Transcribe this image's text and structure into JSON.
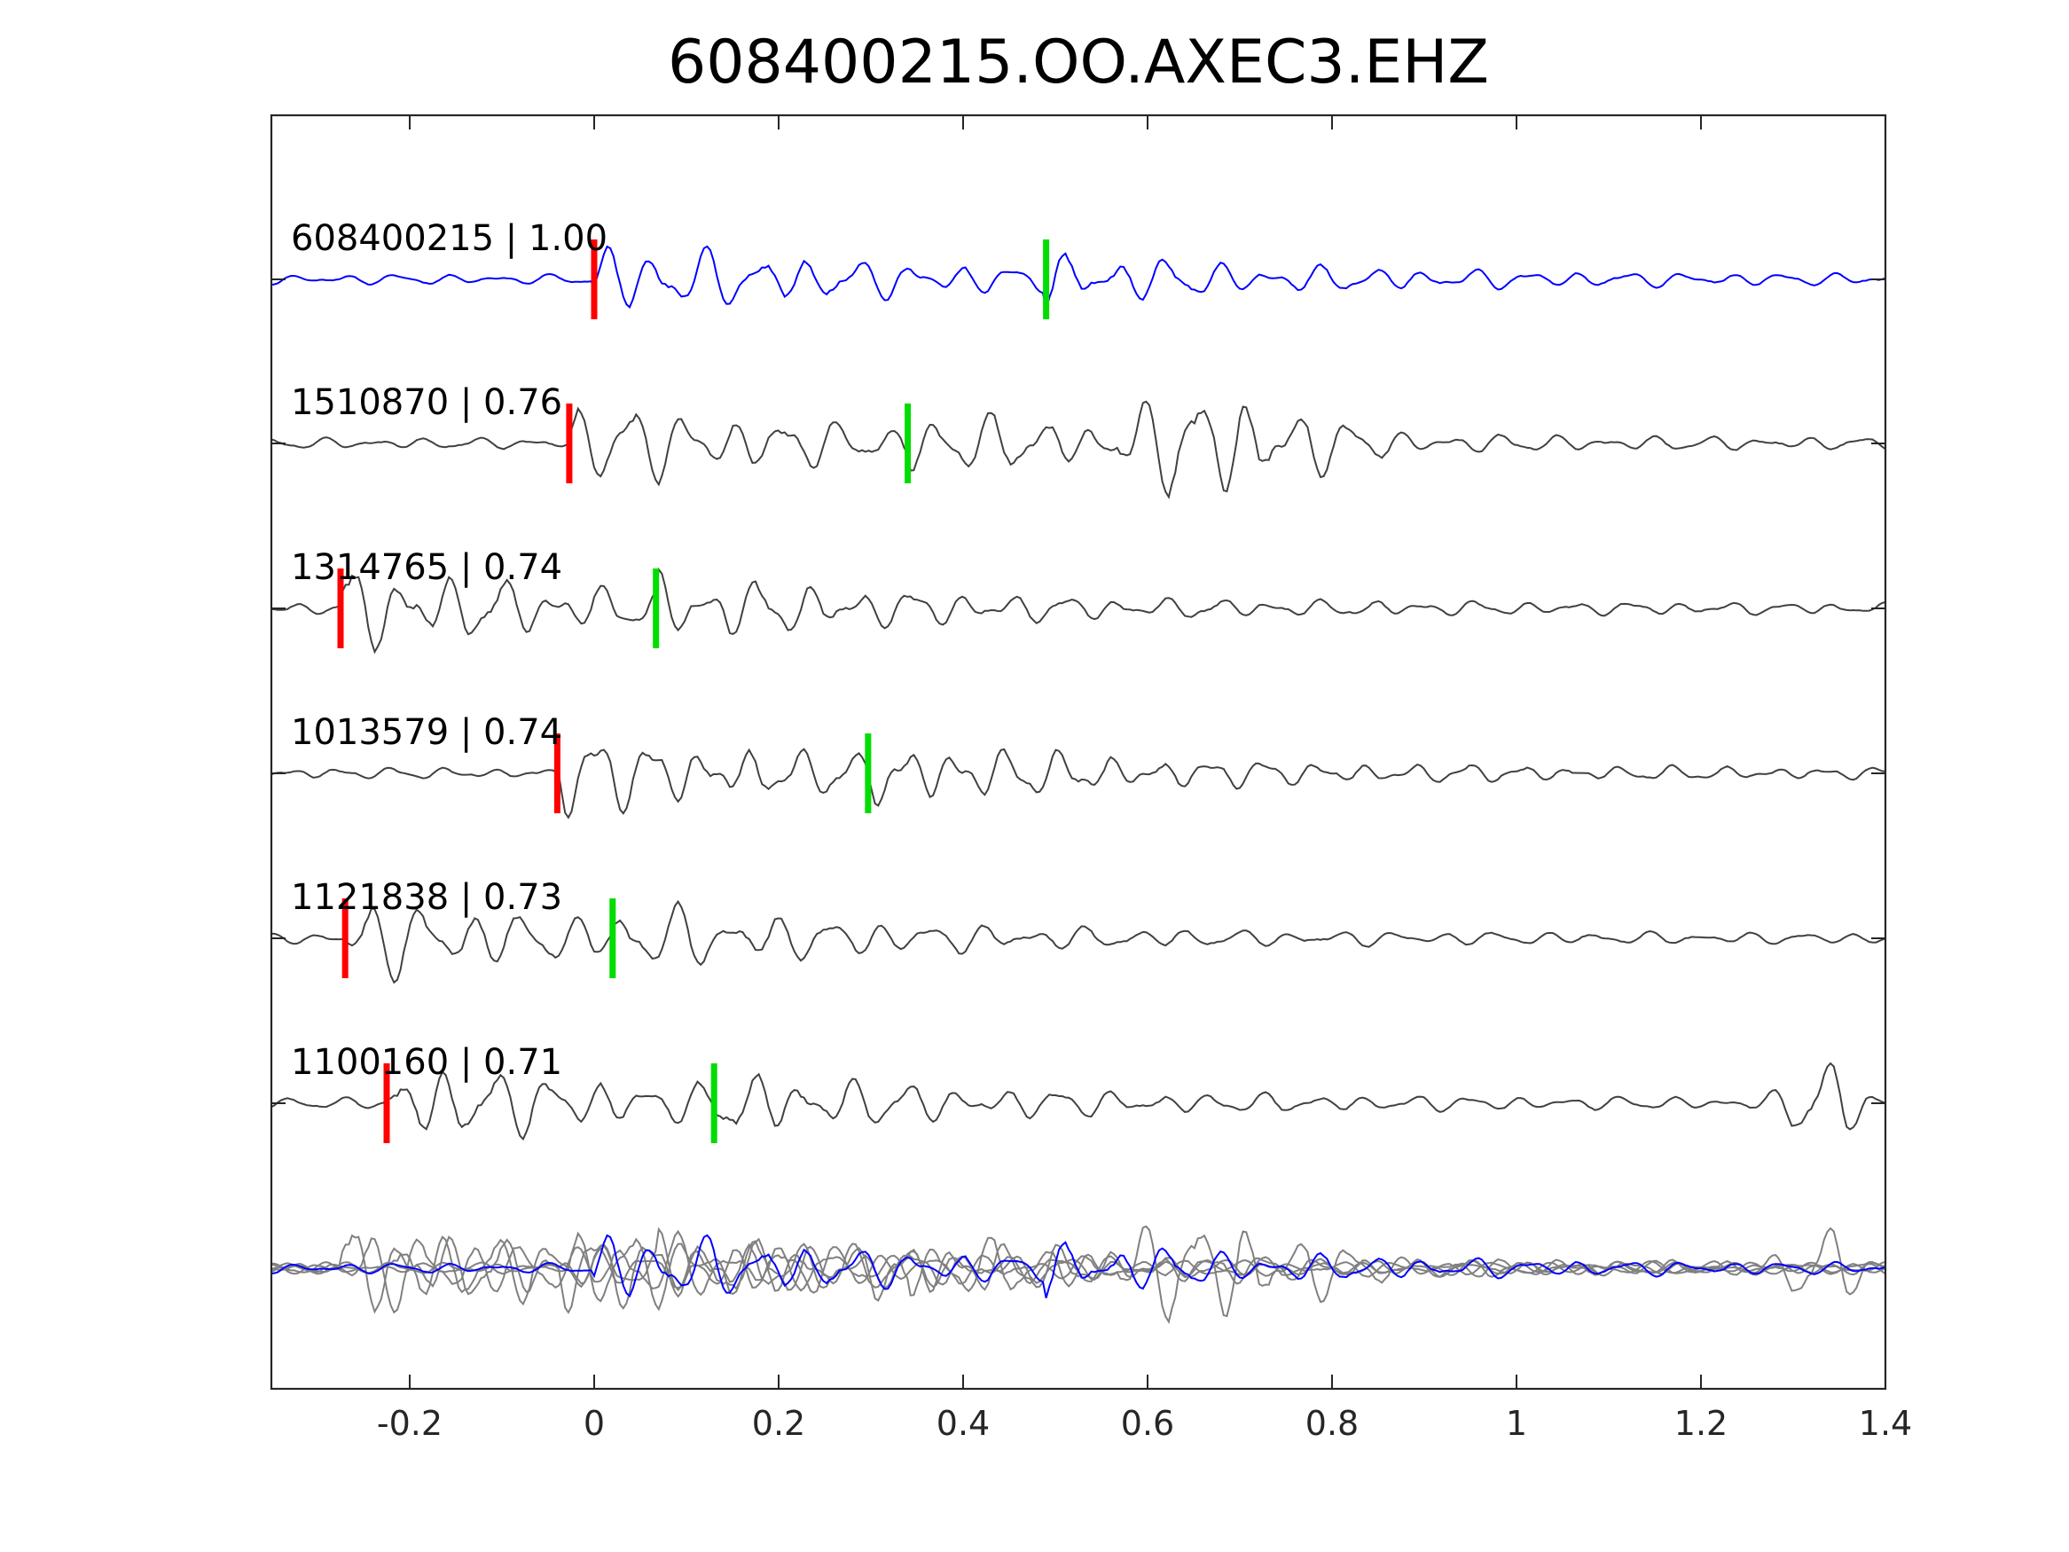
{
  "chart_data": {
    "type": "line",
    "title": "608400215.OO.AXEC3.EHZ",
    "xlabel": "",
    "ylabel": "",
    "xlim": [
      -0.35,
      1.4
    ],
    "xticks": [
      -0.2,
      0,
      0.2,
      0.4,
      0.6,
      0.8,
      1,
      1.2,
      1.4
    ],
    "xtick_labels": [
      "-0.2",
      "0",
      "0.2",
      "0.4",
      "0.6",
      "0.8",
      "1",
      "1.2",
      "1.4"
    ],
    "grid": false,
    "colors": {
      "reference_trace": "#0000ff",
      "similar_trace": "#404040",
      "overlay_trace": "#808080",
      "p_pick": "#ff0000",
      "s_pick": "#00dd00"
    },
    "traces": [
      {
        "id": "608400215",
        "score": "1.00",
        "label": "608400215 | 1.00",
        "color": "#0000ff",
        "p_pick": 0.0,
        "s_pick": 0.49,
        "amplitude": 0.55,
        "seed": 11
      },
      {
        "id": "1510870",
        "score": "0.76",
        "label": "1510870 | 0.76",
        "color": "#404040",
        "p_pick": -0.027,
        "s_pick": 0.34,
        "amplitude": 0.6,
        "seed": 23
      },
      {
        "id": "1314765",
        "score": "0.74",
        "label": "1314765 | 0.74",
        "color": "#404040",
        "p_pick": -0.275,
        "s_pick": 0.067,
        "amplitude": 0.62,
        "seed": 37
      },
      {
        "id": "1013579",
        "score": "0.74",
        "label": "1013579 | 0.74",
        "color": "#404040",
        "p_pick": -0.04,
        "s_pick": 0.297,
        "amplitude": 0.6,
        "seed": 41
      },
      {
        "id": "1121838",
        "score": "0.73",
        "label": "1121838 | 0.73",
        "color": "#404040",
        "p_pick": -0.27,
        "s_pick": 0.02,
        "amplitude": 0.58,
        "seed": 53
      },
      {
        "id": "1100160",
        "score": "0.71",
        "label": "1100160 | 0.71",
        "color": "#404040",
        "p_pick": -0.225,
        "s_pick": 0.13,
        "amplitude": 0.6,
        "seed": 67
      }
    ],
    "stack": {
      "description_overlay_of": "all traces",
      "color": "#808080"
    }
  }
}
